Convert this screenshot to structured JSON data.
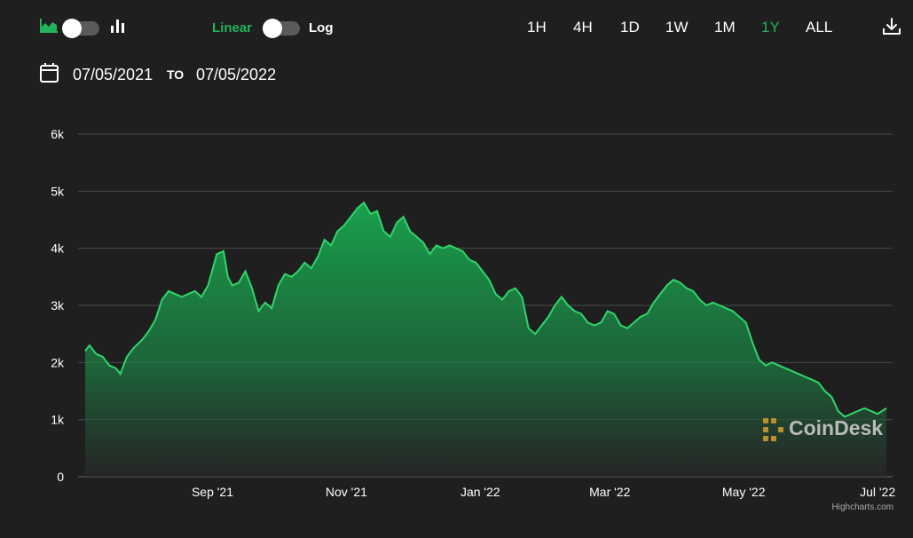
{
  "toolbar": {
    "chart_style_icons": [
      "area-chart-icon",
      "bar-chart-icon"
    ],
    "scale": {
      "linear_label": "Linear",
      "log_label": "Log",
      "active": "Linear"
    },
    "ranges": [
      "1H",
      "4H",
      "1D",
      "1W",
      "1M",
      "1Y",
      "ALL"
    ],
    "active_range": "1Y",
    "download_icon": "download-icon"
  },
  "date_range": {
    "from": "07/05/2021",
    "to_label": "TO",
    "to": "07/05/2022"
  },
  "colors": {
    "accent": "#22b45a",
    "line": "#2fd66a",
    "background": "#1f1f1f",
    "grid": "#4a4a4a"
  },
  "watermark": {
    "text": "CoinDesk"
  },
  "credits": "Highcharts.com",
  "chart_data": {
    "type": "area",
    "title": "",
    "xlabel": "",
    "ylabel": "",
    "ylim": [
      0,
      6000
    ],
    "yticks": [
      "0",
      "1k",
      "2k",
      "3k",
      "4k",
      "5k",
      "6k"
    ],
    "ytick_values": [
      0,
      1000,
      2000,
      3000,
      4000,
      5000,
      6000
    ],
    "xlim": [
      "2021-07-05",
      "2022-07-05"
    ],
    "xticks": [
      "Sep '21",
      "Nov '21",
      "Jan '22",
      "Mar '22",
      "May '22",
      "Jul '22"
    ],
    "xtick_dates": [
      "2021-09-01",
      "2021-11-01",
      "2022-01-01",
      "2022-03-01",
      "2022-05-01",
      "2022-07-01"
    ],
    "grid": true,
    "legend": "none",
    "series": [
      {
        "x": [
          "2021-07-05",
          "2021-07-07",
          "2021-07-10",
          "2021-07-13",
          "2021-07-16",
          "2021-07-19",
          "2021-07-21",
          "2021-07-24",
          "2021-07-27",
          "2021-07-31",
          "2021-08-03",
          "2021-08-06",
          "2021-08-09",
          "2021-08-12",
          "2021-08-15",
          "2021-08-18",
          "2021-08-21",
          "2021-08-24",
          "2021-08-27",
          "2021-08-30",
          "2021-09-03",
          "2021-09-06",
          "2021-09-08",
          "2021-09-10",
          "2021-09-13",
          "2021-09-16",
          "2021-09-19",
          "2021-09-22",
          "2021-09-25",
          "2021-09-28",
          "2021-10-01",
          "2021-10-04",
          "2021-10-07",
          "2021-10-10",
          "2021-10-13",
          "2021-10-16",
          "2021-10-19",
          "2021-10-22",
          "2021-10-25",
          "2021-10-28",
          "2021-10-31",
          "2021-11-03",
          "2021-11-06",
          "2021-11-09",
          "2021-11-12",
          "2021-11-15",
          "2021-11-18",
          "2021-11-21",
          "2021-11-24",
          "2021-11-27",
          "2021-11-30",
          "2021-12-03",
          "2021-12-06",
          "2021-12-09",
          "2021-12-12",
          "2021-12-15",
          "2021-12-18",
          "2021-12-21",
          "2021-12-24",
          "2021-12-27",
          "2021-12-30",
          "2022-01-02",
          "2022-01-05",
          "2022-01-08",
          "2022-01-11",
          "2022-01-14",
          "2022-01-17",
          "2022-01-20",
          "2022-01-23",
          "2022-01-26",
          "2022-01-29",
          "2022-02-01",
          "2022-02-04",
          "2022-02-07",
          "2022-02-10",
          "2022-02-13",
          "2022-02-16",
          "2022-02-19",
          "2022-02-22",
          "2022-02-25",
          "2022-02-28",
          "2022-03-03",
          "2022-03-06",
          "2022-03-09",
          "2022-03-12",
          "2022-03-15",
          "2022-03-18",
          "2022-03-21",
          "2022-03-24",
          "2022-03-27",
          "2022-03-30",
          "2022-04-02",
          "2022-04-05",
          "2022-04-08",
          "2022-04-11",
          "2022-04-14",
          "2022-04-17",
          "2022-04-20",
          "2022-04-23",
          "2022-04-26",
          "2022-04-29",
          "2022-05-02",
          "2022-05-05",
          "2022-05-08",
          "2022-05-11",
          "2022-05-14",
          "2022-05-17",
          "2022-05-20",
          "2022-05-23",
          "2022-05-26",
          "2022-05-29",
          "2022-06-01",
          "2022-06-04",
          "2022-06-07",
          "2022-06-10",
          "2022-06-13",
          "2022-06-16",
          "2022-06-19",
          "2022-06-22",
          "2022-06-25",
          "2022-06-28",
          "2022-07-01",
          "2022-07-05"
        ],
        "y": [
          2200,
          2300,
          2150,
          2100,
          1950,
          1900,
          1800,
          2100,
          2250,
          2400,
          2550,
          2750,
          3100,
          3250,
          3200,
          3150,
          3200,
          3250,
          3150,
          3350,
          3900,
          3950,
          3500,
          3350,
          3400,
          3600,
          3300,
          2900,
          3050,
          2950,
          3350,
          3550,
          3500,
          3600,
          3750,
          3650,
          3850,
          4150,
          4050,
          4300,
          4400,
          4550,
          4700,
          4800,
          4600,
          4650,
          4300,
          4200,
          4450,
          4550,
          4300,
          4200,
          4100,
          3900,
          4050,
          4000,
          4050,
          4000,
          3950,
          3800,
          3750,
          3600,
          3450,
          3200,
          3100,
          3250,
          3300,
          3150,
          2600,
          2500,
          2650,
          2800,
          3000,
          3150,
          3000,
          2900,
          2850,
          2700,
          2650,
          2700,
          2900,
          2850,
          2650,
          2600,
          2700,
          2800,
          2850,
          3050,
          3200,
          3350,
          3450,
          3400,
          3300,
          3250,
          3100,
          3000,
          3050,
          3000,
          2950,
          2900,
          2800,
          2700,
          2350,
          2050,
          1950,
          2000,
          1950,
          1900,
          1850,
          1800,
          1750,
          1700,
          1650,
          1500,
          1400,
          1150,
          1050,
          1100,
          1150,
          1200,
          1150,
          1100,
          1200
        ]
      }
    ]
  }
}
